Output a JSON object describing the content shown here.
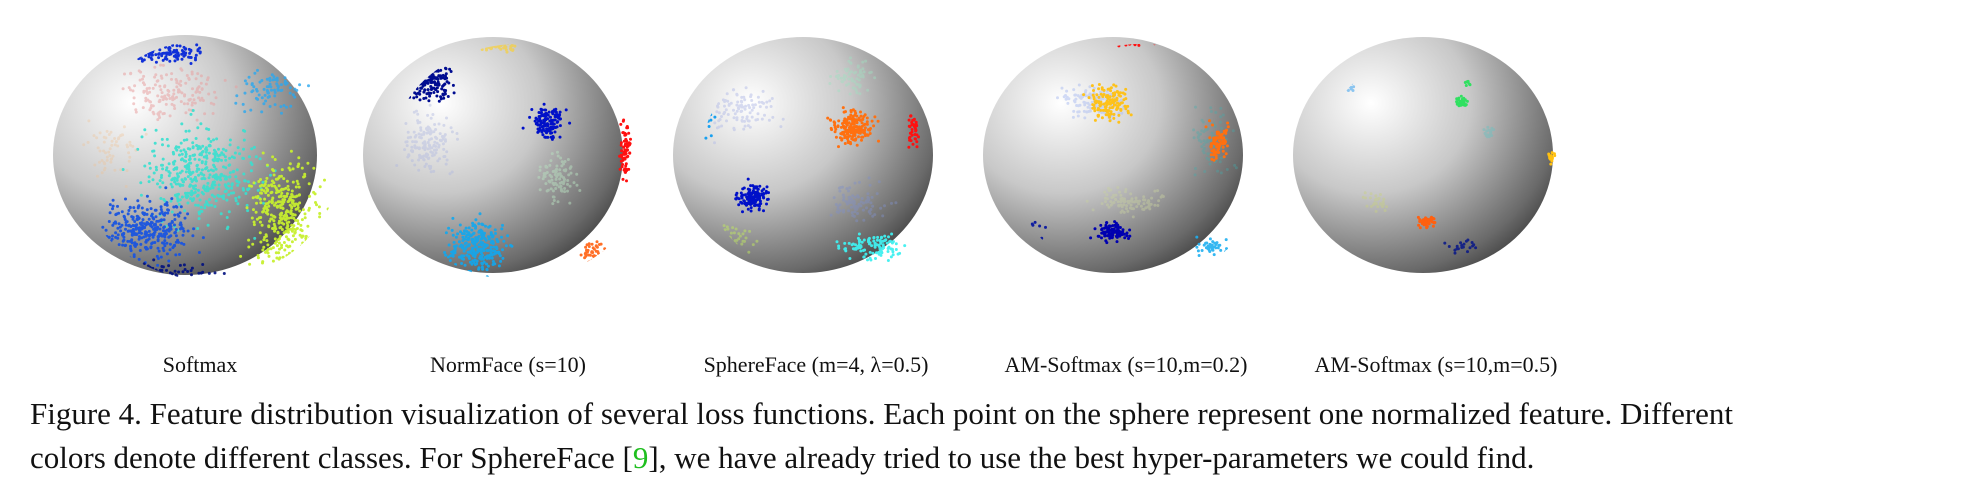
{
  "figure": {
    "panels": [
      {
        "label": "Softmax"
      },
      {
        "label": "NormFace (s=10)"
      },
      {
        "label": "SphereFace (m=4, λ=0.5)"
      },
      {
        "label": "AM-Softmax (s=10,m=0.2)"
      },
      {
        "label": "AM-Softmax (s=10,m=0.5)"
      }
    ],
    "caption": {
      "line1": "Figure 4.  Feature distribution visualization of several loss functions. Each point on the sphere represent one normalized feature. Different",
      "line2_before": "colors denote different classes. For SphereFace [",
      "ref": "9",
      "line2_after": "], we have already tried to use the best hyper-parameters we could find."
    }
  }
}
